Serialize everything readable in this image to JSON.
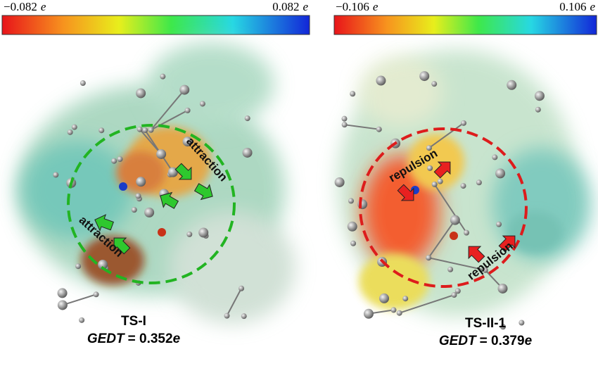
{
  "panels": [
    {
      "scale": {
        "min": "−0.082",
        "max": "0.082",
        "unit": "e"
      },
      "title": "TS-I",
      "gedt": {
        "label": "GEDT",
        "value": "= 0.352",
        "unit": "e"
      },
      "annotations": [
        "attraction",
        "attraction"
      ]
    },
    {
      "scale": {
        "min": "−0.106",
        "max": "0.106",
        "unit": "e"
      },
      "title": "TS-II-1",
      "gedt": {
        "label": "GEDT",
        "value": "= 0.379",
        "unit": "e"
      },
      "annotations": [
        "repulsion",
        "repulsion"
      ]
    }
  ]
}
